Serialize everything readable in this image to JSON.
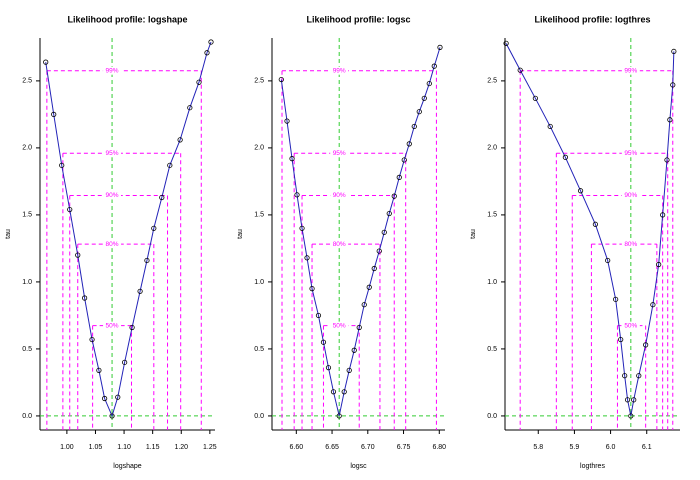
{
  "chart_data": [
    {
      "type": "line",
      "title": "Likelihood profile: logshape",
      "x_label": "logshape",
      "y_label": "tau",
      "x": [
        0.963,
        0.977,
        0.991,
        1.005,
        1.019,
        1.031,
        1.044,
        1.056,
        1.066,
        1.079,
        1.089,
        1.101,
        1.114,
        1.128,
        1.14,
        1.152,
        1.166,
        1.18,
        1.198,
        1.215,
        1.231,
        1.245,
        1.252
      ],
      "values": [
        2.64,
        2.25,
        1.87,
        1.54,
        1.2,
        0.88,
        0.57,
        0.34,
        0.13,
        0,
        0.14,
        0.4,
        0.66,
        0.93,
        1.16,
        1.4,
        1.63,
        1.87,
        2.06,
        2.3,
        2.49,
        2.71,
        2.79
      ],
      "color": "#2323b8",
      "mle": 1.079,
      "levels": [
        {
          "value": 0.674,
          "label": "50%"
        },
        {
          "value": 1.282,
          "label": "80%"
        },
        {
          "value": 1.645,
          "label": "90%"
        },
        {
          "value": 1.96,
          "label": "95%"
        },
        {
          "value": 2.576,
          "label": "99%"
        }
      ],
      "ci_lower": [
        1.045,
        1.019,
        1.005,
        0.993,
        0.965
      ],
      "ci_upper": [
        1.113,
        1.152,
        1.176,
        1.199,
        1.235
      ],
      "xlim": [
        0.953,
        1.259
      ],
      "ylim": [
        -0.105,
        2.82
      ],
      "xticks": [
        {
          "value": 1.0,
          "label": "1.00"
        },
        {
          "value": 1.05,
          "label": "1.05"
        },
        {
          "value": 1.1,
          "label": "1.10"
        },
        {
          "value": 1.15,
          "label": "1.15"
        },
        {
          "value": 1.2,
          "label": "1.20"
        },
        {
          "value": 1.25,
          "label": "1.25"
        }
      ],
      "yticks": [
        {
          "value": 0,
          "label": "0.0"
        },
        0.5,
        {
          "value": 1,
          "label": "1.0"
        },
        1.5,
        {
          "value": 2,
          "label": "2.0"
        },
        2.5
      ]
    },
    {
      "type": "line",
      "title": "Likelihood profile: logsc",
      "x_label": "logsc",
      "y_label": "tau",
      "x": [
        6.579,
        6.587,
        6.594,
        6.601,
        6.608,
        6.615,
        6.622,
        6.631,
        6.638,
        6.645,
        6.652,
        6.66,
        6.667,
        6.674,
        6.681,
        6.688,
        6.695,
        6.702,
        6.709,
        6.716,
        6.723,
        6.73,
        6.737,
        6.744,
        6.751,
        6.758,
        6.765,
        6.772,
        6.779,
        6.786,
        6.793,
        6.801
      ],
      "values": [
        2.51,
        2.2,
        1.92,
        1.65,
        1.4,
        1.18,
        0.95,
        0.75,
        0.55,
        0.36,
        0.18,
        0,
        0.18,
        0.34,
        0.49,
        0.66,
        0.83,
        0.96,
        1.1,
        1.23,
        1.37,
        1.51,
        1.64,
        1.78,
        1.91,
        2.03,
        2.16,
        2.27,
        2.37,
        2.48,
        2.61,
        2.75
      ],
      "color": "#2323b8",
      "mle": 6.66,
      "levels": [
        {
          "value": 0.674,
          "label": "50%"
        },
        {
          "value": 1.282,
          "label": "80%"
        },
        {
          "value": 1.645,
          "label": "90%"
        },
        {
          "value": 1.96,
          "label": "95%"
        },
        {
          "value": 2.576,
          "label": "99%"
        }
      ],
      "ci_lower": [
        6.638,
        6.622,
        6.608,
        6.597,
        6.58
      ],
      "ci_upper": [
        6.688,
        6.717,
        6.737,
        6.753,
        6.796
      ],
      "xlim": [
        6.566,
        6.808
      ],
      "ylim": [
        -0.105,
        2.82
      ],
      "xticks": [
        {
          "value": 6.6,
          "label": "6.60"
        },
        6.65,
        {
          "value": 6.7,
          "label": "6.70"
        },
        6.75,
        {
          "value": 6.8,
          "label": "6.80"
        }
      ],
      "yticks": [
        {
          "value": 0,
          "label": "0.0"
        },
        0.5,
        {
          "value": 1,
          "label": "1.0"
        },
        1.5,
        {
          "value": 2,
          "label": "2.0"
        },
        2.5
      ]
    },
    {
      "type": "line",
      "title": "Likelihood profile: logthres",
      "x_label": "logthres",
      "y_label": "tau",
      "x": [
        5.711,
        5.75,
        5.792,
        5.833,
        5.875,
        5.917,
        5.958,
        5.992,
        6.014,
        6.028,
        6.039,
        6.047,
        6.056,
        6.064,
        6.078,
        6.097,
        6.117,
        6.133,
        6.144,
        6.156,
        6.164,
        6.172,
        6.175
      ],
      "values": [
        2.78,
        2.58,
        2.37,
        2.16,
        1.93,
        1.68,
        1.43,
        1.16,
        0.87,
        0.57,
        0.3,
        0.12,
        0,
        0.12,
        0.3,
        0.53,
        0.83,
        1.13,
        1.5,
        1.91,
        2.21,
        2.47,
        2.72
      ],
      "color": "#2323b8",
      "mle": 6.056,
      "levels": [
        {
          "value": 0.674,
          "label": "50%"
        },
        {
          "value": 1.282,
          "label": "80%"
        },
        {
          "value": 1.645,
          "label": "90%"
        },
        {
          "value": 1.96,
          "label": "95%"
        },
        {
          "value": 2.576,
          "label": "99%"
        }
      ],
      "ci_lower": [
        6.019,
        5.947,
        5.894,
        5.85,
        5.75
      ],
      "ci_upper": [
        6.097,
        6.128,
        6.144,
        6.158,
        6.172
      ],
      "xlim": [
        5.708,
        6.192
      ],
      "ylim": [
        -0.105,
        2.82
      ],
      "xticks": [
        5.8,
        5.9,
        {
          "value": 6,
          "label": "6.0"
        },
        6.1
      ],
      "yticks": [
        {
          "value": 0,
          "label": "0.0"
        },
        0.5,
        {
          "value": 1,
          "label": "1.0"
        },
        1.5,
        {
          "value": 2,
          "label": "2.0"
        },
        2.5
      ]
    }
  ]
}
